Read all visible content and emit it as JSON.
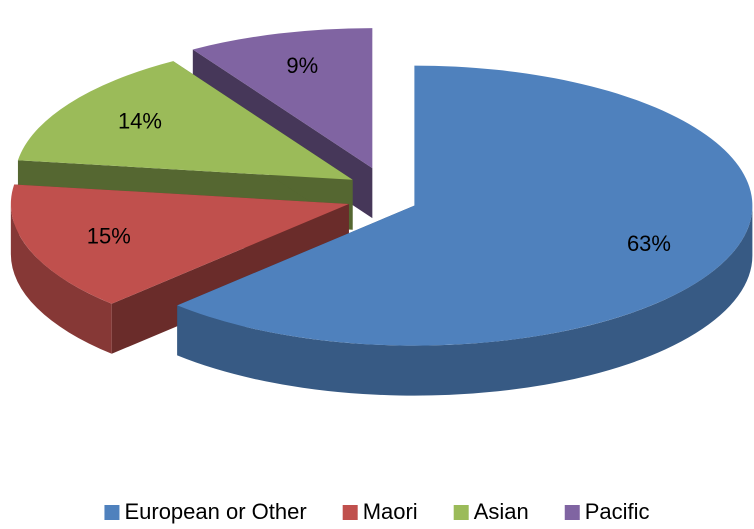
{
  "chart_data": {
    "type": "pie",
    "categories": [
      "European or Other",
      "Maori",
      "Asian",
      "Pacific"
    ],
    "values": [
      63,
      15,
      14,
      9
    ],
    "value_labels": [
      "63%",
      "15%",
      "14%",
      "9%"
    ],
    "colors": [
      "#4f81bd",
      "#c0504d",
      "#9bbb59",
      "#8064a2"
    ],
    "legend": "bottom"
  }
}
